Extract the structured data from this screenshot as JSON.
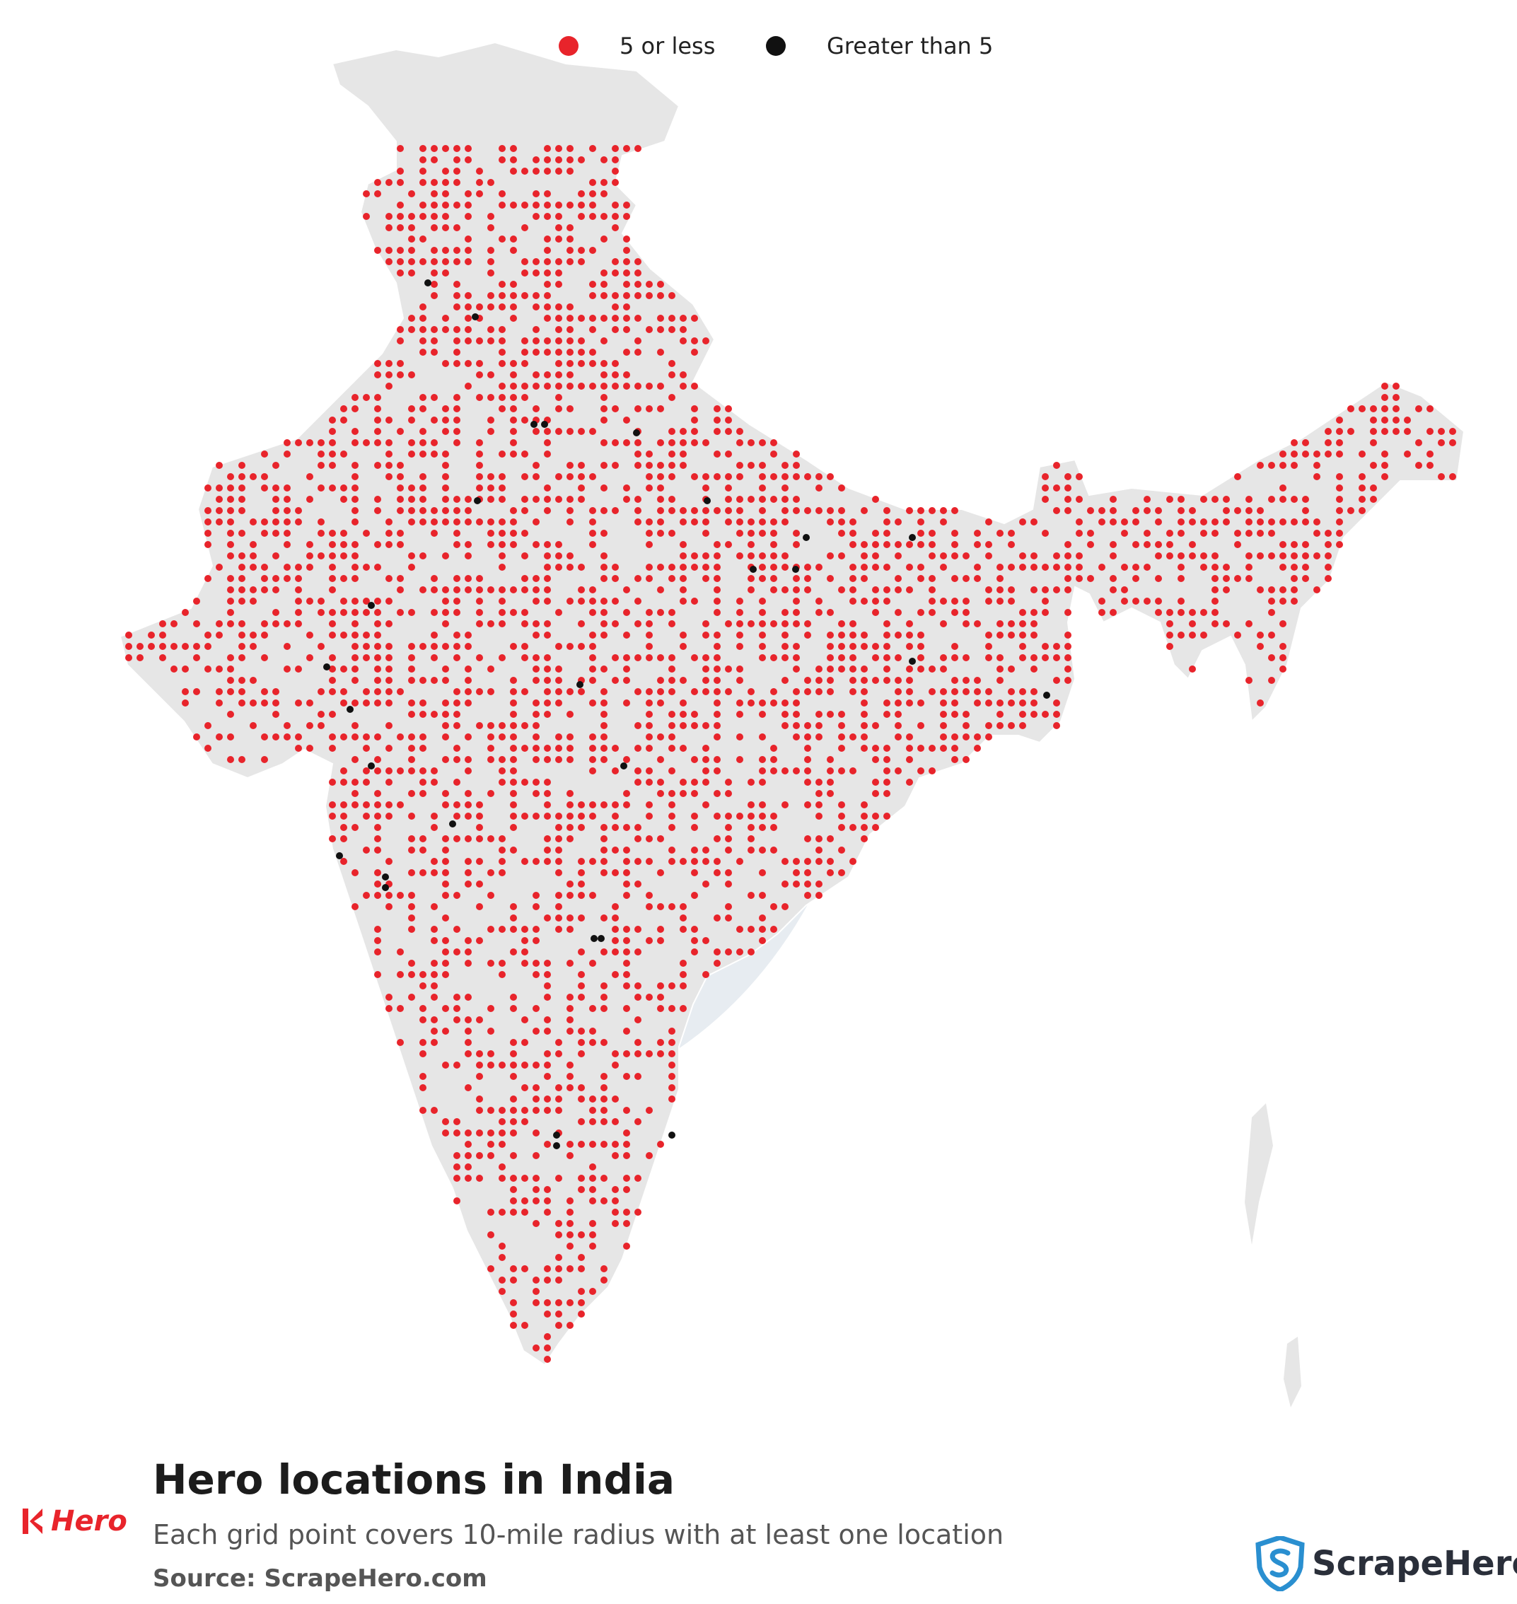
{
  "legend": {
    "items": [
      {
        "label": "5 or less",
        "color": "#e8242b"
      },
      {
        "label": "Greater than 5",
        "color": "#111111"
      }
    ]
  },
  "title": "Hero locations in India",
  "subtitle": "Each grid point covers 10-mile radius with at least one location",
  "source": "Source: ScrapeHero.com",
  "brand": {
    "name": "Hero",
    "icon": "hero-logo-icon",
    "color": "#e8242b"
  },
  "publisher": {
    "name": "ScrapeHero",
    "icon": "scrapehero-shield-icon",
    "color": "#2a8fd0"
  },
  "map": {
    "region": "India",
    "land_color": "#e6e6e6",
    "border_color": "#ffffff"
  }
}
